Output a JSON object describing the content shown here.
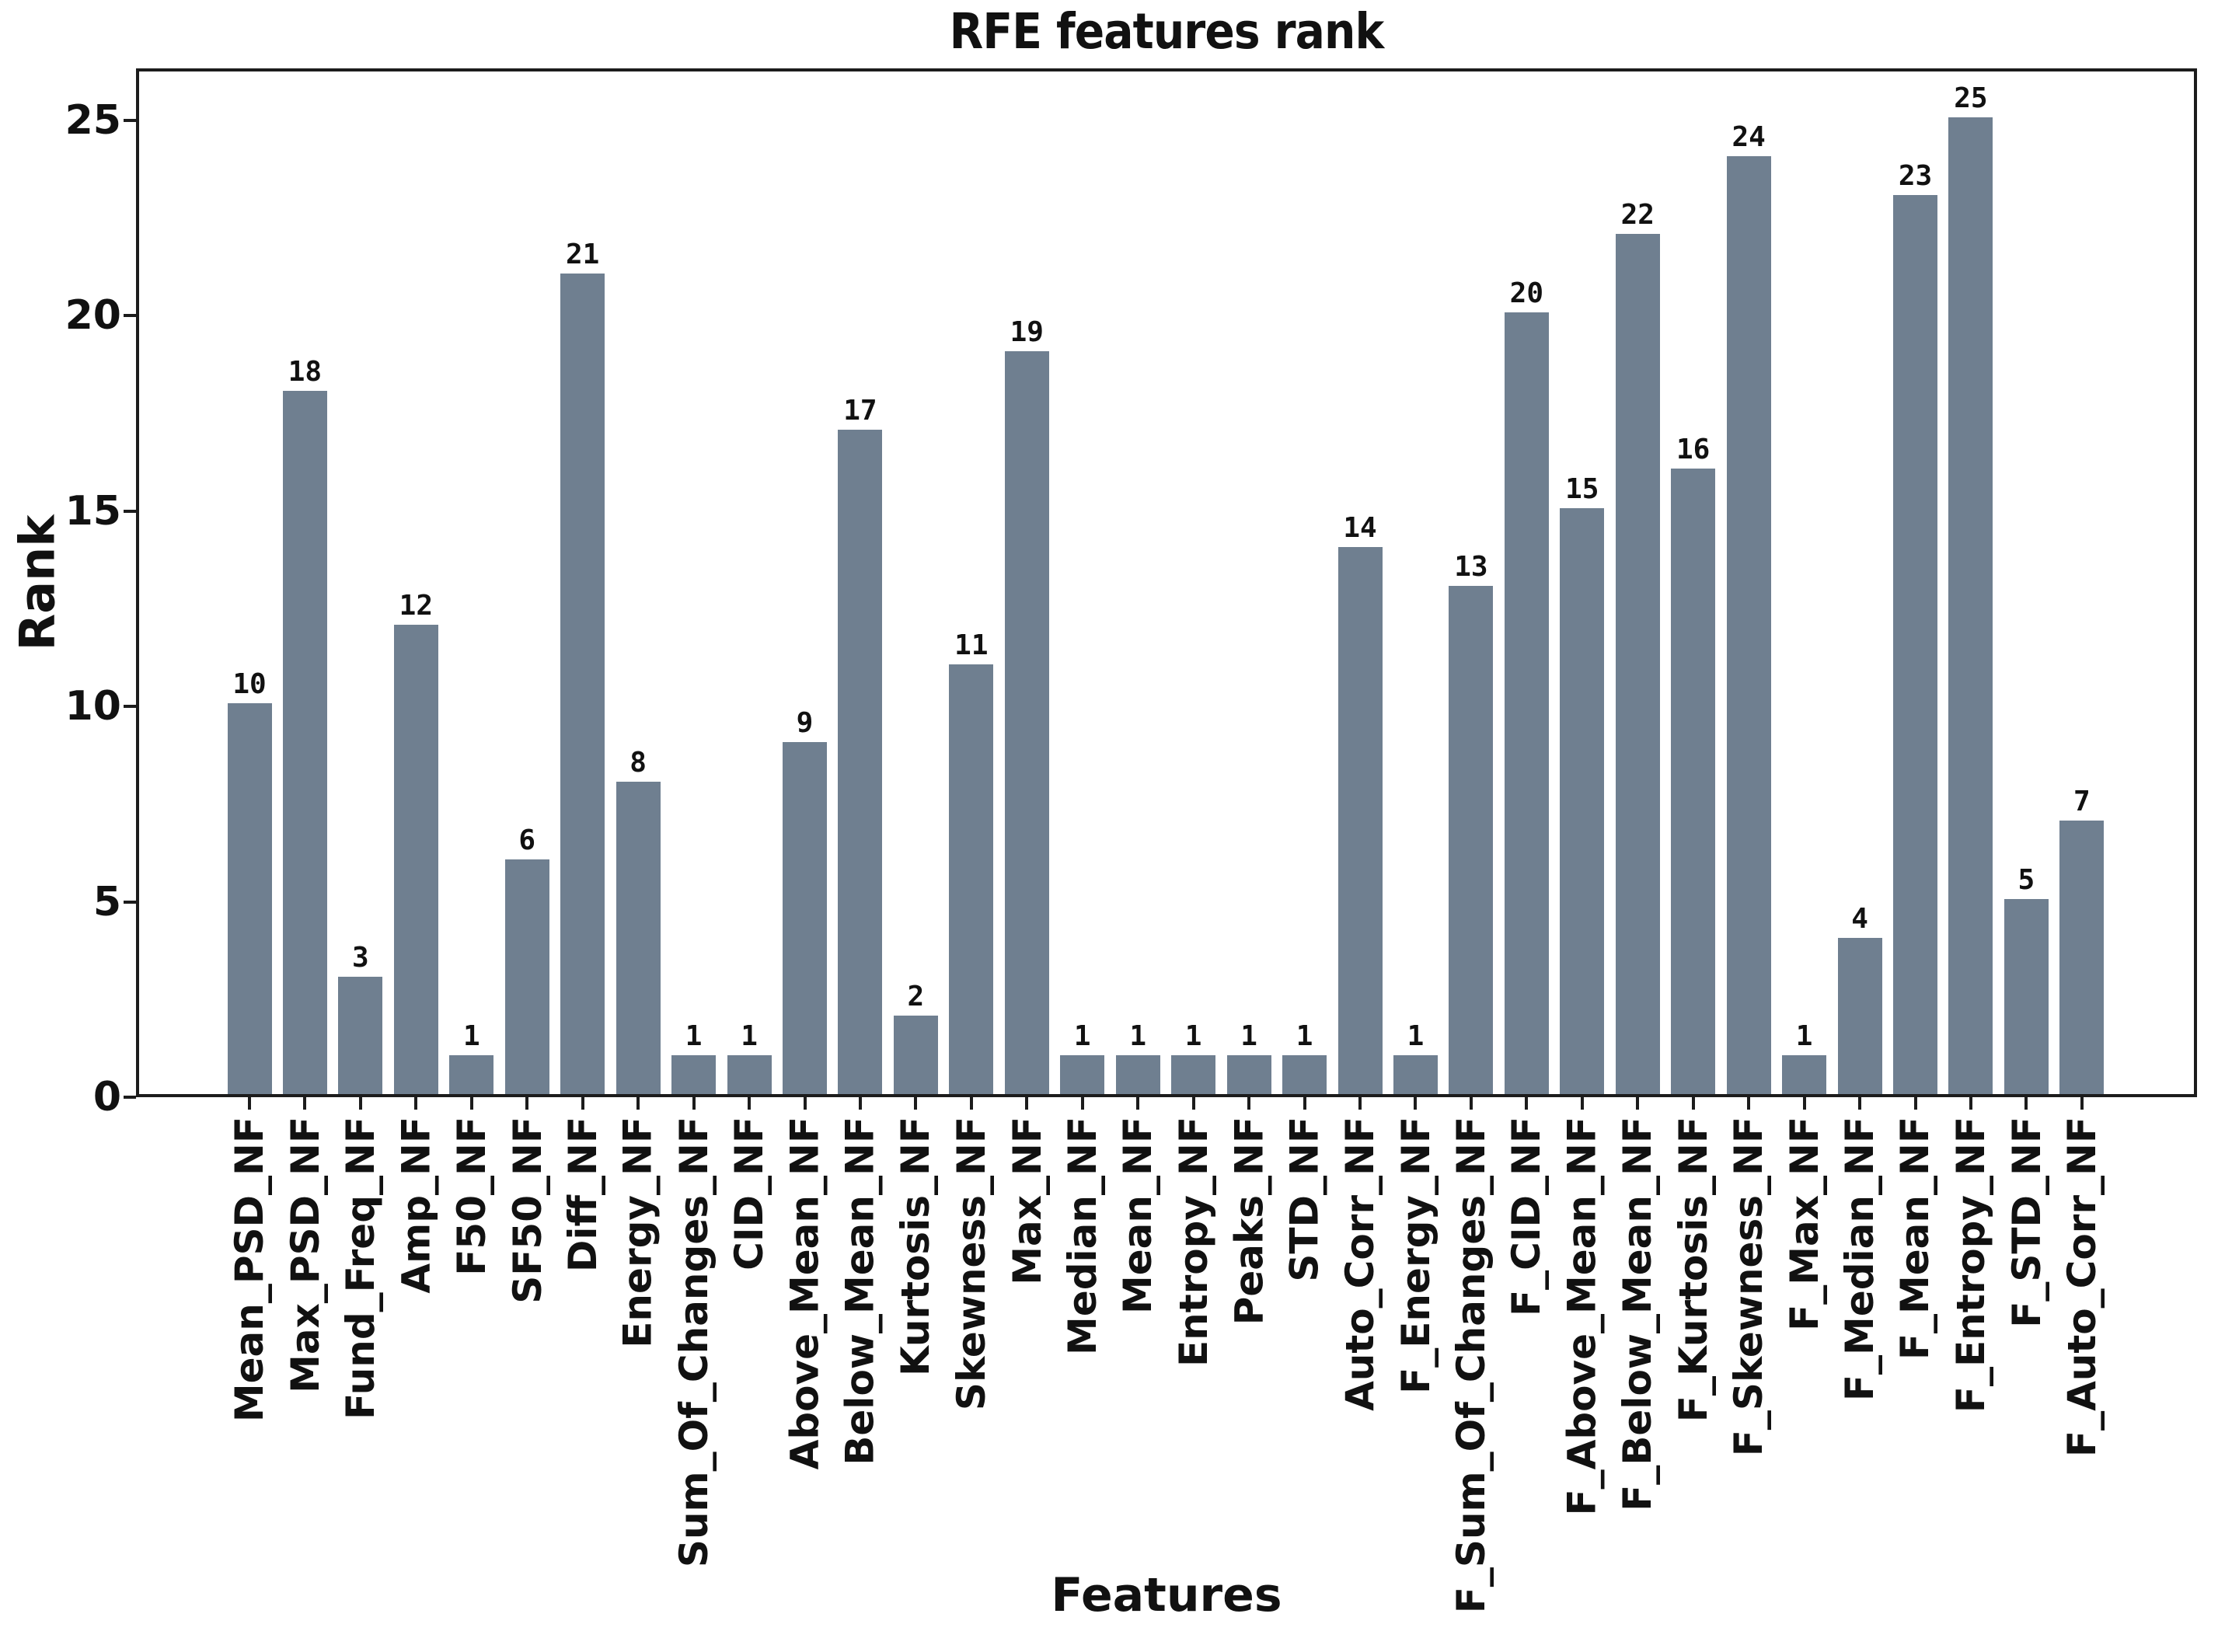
{
  "chart_data": {
    "type": "bar",
    "title": "RFE features rank",
    "xlabel": "Features",
    "ylabel": "Rank",
    "categories": [
      "Mean_PSD_NF",
      "Max_PSD_NF",
      "Fund_Freq_NF",
      "Amp_NF",
      "F50_NF",
      "SF50_NF",
      "Diff_NF",
      "Energy_NF",
      "Sum_Of_Changes_NF",
      "CID_NF",
      "Above_Mean_NF",
      "Below_Mean_NF",
      "Kurtosis_NF",
      "Skewness_NF",
      "Max_NF",
      "Median_NF",
      "Mean_NF",
      "Entropy_NF",
      "Peaks_NF",
      "STD_NF",
      "Auto_Corr_NF",
      "F_Energy_NF",
      "F_Sum_Of_Changes_NF",
      "F_CID_NF",
      "F_Above_Mean_NF",
      "F_Below_Mean_NF",
      "F_Kurtosis_NF",
      "F_Skewness_NF",
      "F_Max_NF",
      "F_Median_NF",
      "F_Mean_NF",
      "F_Entropy_NF",
      "F_STD_NF",
      "F_Auto_Corr_NF"
    ],
    "values": [
      10,
      18,
      3,
      12,
      1,
      6,
      21,
      8,
      1,
      1,
      9,
      17,
      2,
      11,
      19,
      1,
      1,
      1,
      1,
      1,
      14,
      1,
      13,
      20,
      15,
      22,
      16,
      24,
      1,
      4,
      23,
      25,
      5,
      7
    ],
    "bar_value_labels_shown": true,
    "yticks": [
      0,
      5,
      10,
      15,
      20,
      25
    ],
    "ylim": [
      0,
      26.3
    ],
    "grid": false,
    "legend": null,
    "bar_color": "#6f7f90",
    "axis_color": "#1c1c1c",
    "background_color": "#ffffff"
  }
}
